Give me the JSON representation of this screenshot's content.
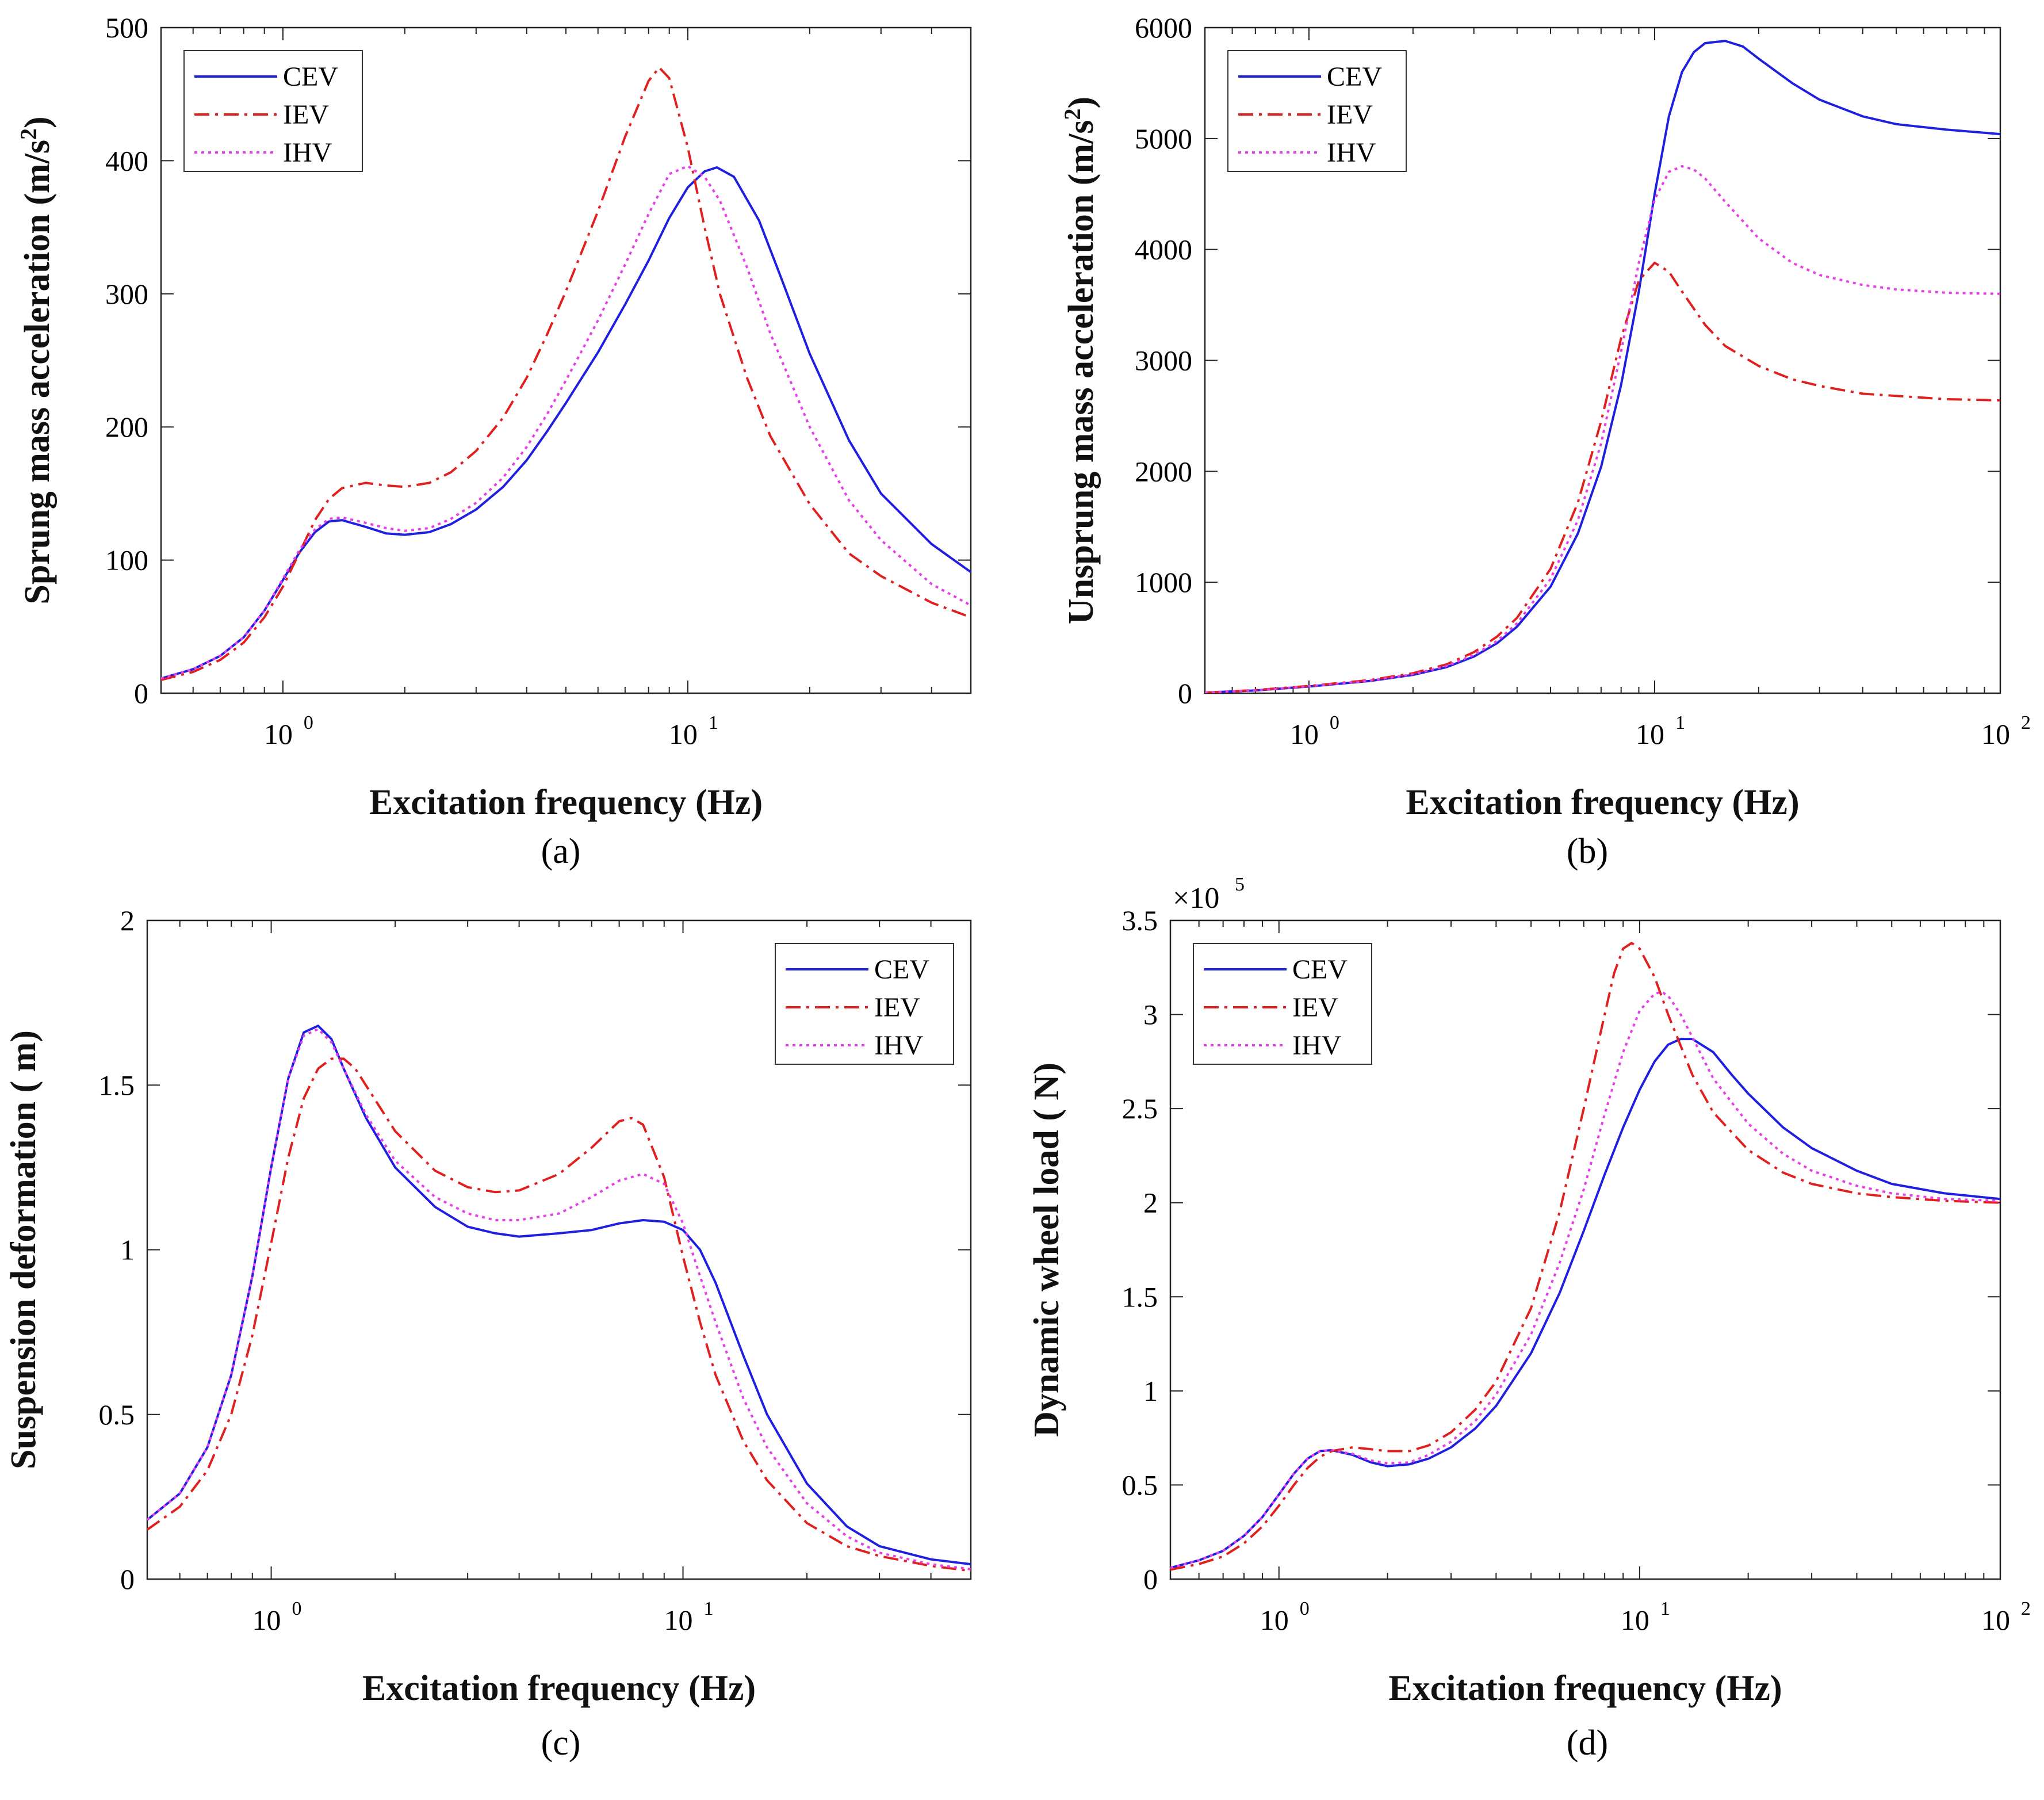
{
  "chart_data": [
    {
      "type": "line",
      "panel": "(a)",
      "caption": "(a)",
      "xscale": "log",
      "xlim": [
        0.5,
        50
      ],
      "ylim": [
        0,
        500
      ],
      "xticks": [
        {
          "base": "10",
          "exp": "0"
        },
        {
          "base": "10",
          "exp": "1"
        }
      ],
      "yticks": [
        "0",
        "100",
        "200",
        "300",
        "400",
        "500"
      ],
      "yticks_values": [
        0,
        100,
        200,
        300,
        400,
        500
      ],
      "xticks_values": [
        1,
        10
      ],
      "xlabel": "Excitation frequency (Hz)",
      "ylabel": "Sprung mass acceleration (m/s",
      "ylabel_sup": "2",
      "ylabel_tail": ")",
      "legend": {
        "position": "top-left",
        "entries": [
          "CEV",
          "IEV",
          "IHV"
        ]
      },
      "series": [
        {
          "name": "CEV",
          "color": "#1f1fe0",
          "style": "solid",
          "x": [
            0.5,
            0.6,
            0.7,
            0.8,
            0.9,
            1.0,
            1.1,
            1.2,
            1.3,
            1.4,
            1.6,
            1.8,
            2.0,
            2.3,
            2.6,
            3.0,
            3.5,
            4.0,
            4.5,
            5.0,
            6.0,
            7.0,
            8.0,
            9.0,
            10.0,
            11.0,
            11.8,
            13.0,
            15.0,
            17.0,
            20.0,
            25.0,
            30.0,
            40.0,
            50.0
          ],
          "y": [
            11,
            18,
            28,
            42,
            62,
            85,
            106,
            121,
            129,
            130,
            125,
            120,
            119,
            121,
            127,
            138,
            155,
            175,
            197,
            218,
            256,
            292,
            325,
            357,
            380,
            392,
            395,
            388,
            355,
            312,
            255,
            190,
            150,
            112,
            91
          ]
        },
        {
          "name": "IEV",
          "color": "#e01f1f",
          "style": "dashdot",
          "x": [
            0.5,
            0.6,
            0.7,
            0.8,
            0.9,
            1.0,
            1.1,
            1.2,
            1.3,
            1.4,
            1.6,
            1.8,
            2.0,
            2.3,
            2.6,
            3.0,
            3.5,
            4.0,
            4.5,
            5.0,
            6.0,
            7.0,
            8.0,
            8.5,
            9.0,
            10.0,
            11.0,
            12.0,
            14.0,
            16.0,
            20.0,
            25.0,
            30.0,
            40.0,
            50.0
          ],
          "y": [
            10,
            16,
            25,
            38,
            57,
            80,
            106,
            130,
            146,
            154,
            158,
            156,
            155,
            158,
            166,
            182,
            207,
            237,
            270,
            302,
            362,
            418,
            460,
            470,
            462,
            410,
            350,
            300,
            237,
            193,
            142,
            105,
            88,
            68,
            57
          ]
        },
        {
          "name": "IHV",
          "color": "#e83ee8",
          "style": "dotted",
          "x": [
            0.5,
            0.6,
            0.7,
            0.8,
            0.9,
            1.0,
            1.1,
            1.2,
            1.3,
            1.4,
            1.6,
            1.8,
            2.0,
            2.3,
            2.6,
            3.0,
            3.5,
            4.0,
            4.5,
            5.0,
            6.0,
            7.0,
            8.0,
            9.0,
            10.0,
            11.0,
            12.0,
            14.0,
            16.0,
            20.0,
            25.0,
            30.0,
            40.0,
            50.0
          ],
          "y": [
            11,
            18,
            28,
            42,
            62,
            86,
            108,
            123,
            131,
            132,
            128,
            124,
            122,
            124,
            131,
            143,
            162,
            185,
            210,
            235,
            280,
            322,
            360,
            390,
            396,
            388,
            370,
            320,
            270,
            200,
            145,
            115,
            82,
            66
          ]
        }
      ]
    },
    {
      "type": "line",
      "panel": "(b)",
      "caption": "(b)",
      "xscale": "log",
      "xlim": [
        0.5,
        100
      ],
      "ylim": [
        0,
        6000
      ],
      "xticks": [
        {
          "base": "10",
          "exp": "0"
        },
        {
          "base": "10",
          "exp": "1"
        },
        {
          "base": "10",
          "exp": "2"
        }
      ],
      "yticks": [
        "0",
        "1000",
        "2000",
        "3000",
        "4000",
        "5000",
        "6000"
      ],
      "yticks_values": [
        0,
        1000,
        2000,
        3000,
        4000,
        5000,
        6000
      ],
      "xticks_values": [
        1,
        10,
        100
      ],
      "xlabel": "Excitation frequency (Hz)",
      "ylabel": "Unsprung mass acceleration (m/s",
      "ylabel_sup": "2",
      "ylabel_tail": ")",
      "legend": {
        "position": "top-left",
        "entries": [
          "CEV",
          "IEV",
          "IHV"
        ]
      },
      "series": [
        {
          "name": "CEV",
          "color": "#1f1fe0",
          "style": "solid",
          "x": [
            0.5,
            0.7,
            1.0,
            1.5,
            2.0,
            2.5,
            3.0,
            3.5,
            4.0,
            5.0,
            6.0,
            7.0,
            8.0,
            9.0,
            10.0,
            11.0,
            12.0,
            13.0,
            14.0,
            16.0,
            18.0,
            20.0,
            25.0,
            30.0,
            40.0,
            50.0,
            70.0,
            100.0
          ],
          "y": [
            5,
            25,
            60,
            110,
            165,
            235,
            330,
            450,
            600,
            960,
            1440,
            2040,
            2780,
            3620,
            4500,
            5200,
            5600,
            5780,
            5860,
            5880,
            5830,
            5720,
            5500,
            5350,
            5200,
            5130,
            5080,
            5040
          ]
        },
        {
          "name": "IEV",
          "color": "#e01f1f",
          "style": "dashdot",
          "x": [
            0.5,
            0.7,
            1.0,
            1.5,
            2.0,
            2.5,
            3.0,
            3.5,
            4.0,
            5.0,
            6.0,
            7.0,
            8.0,
            9.0,
            10.0,
            11.0,
            12.0,
            14.0,
            16.0,
            20.0,
            25.0,
            30.0,
            40.0,
            50.0,
            70.0,
            100.0
          ],
          "y": [
            5,
            28,
            65,
            118,
            180,
            260,
            370,
            510,
            680,
            1120,
            1720,
            2450,
            3200,
            3720,
            3880,
            3800,
            3620,
            3320,
            3130,
            2950,
            2830,
            2770,
            2700,
            2680,
            2650,
            2640
          ]
        },
        {
          "name": "IHV",
          "color": "#e83ee8",
          "style": "dotted",
          "x": [
            0.5,
            0.7,
            1.0,
            1.5,
            2.0,
            2.5,
            3.0,
            3.5,
            4.0,
            5.0,
            6.0,
            7.0,
            8.0,
            9.0,
            10.0,
            11.0,
            12.0,
            13.0,
            14.0,
            16.0,
            20.0,
            25.0,
            30.0,
            40.0,
            50.0,
            70.0,
            100.0
          ],
          "y": [
            5,
            26,
            62,
            113,
            170,
            245,
            345,
            470,
            630,
            1030,
            1560,
            2250,
            3080,
            3880,
            4450,
            4700,
            4750,
            4720,
            4640,
            4430,
            4100,
            3880,
            3770,
            3680,
            3640,
            3610,
            3600
          ]
        }
      ]
    },
    {
      "type": "line",
      "panel": "(c)",
      "caption": "(c)",
      "xscale": "log",
      "xlim": [
        0.5,
        50
      ],
      "ylim": [
        0,
        2
      ],
      "xticks": [
        {
          "base": "10",
          "exp": "0"
        },
        {
          "base": "10",
          "exp": "1"
        }
      ],
      "yticks": [
        "0",
        "0.5",
        "1",
        "1.5",
        "2"
      ],
      "yticks_values": [
        0,
        0.5,
        1,
        1.5,
        2
      ],
      "xticks_values": [
        1,
        10
      ],
      "xlabel": "Excitation frequency (Hz)",
      "ylabel": "Suspension deformation ( m)",
      "ylabel_sup": "",
      "ylabel_tail": "",
      "legend": {
        "position": "top-right",
        "entries": [
          "CEV",
          "IEV",
          "IHV"
        ]
      },
      "series": [
        {
          "name": "CEV",
          "color": "#1f1fe0",
          "style": "solid",
          "x": [
            0.5,
            0.6,
            0.7,
            0.8,
            0.9,
            1.0,
            1.1,
            1.2,
            1.3,
            1.4,
            1.5,
            1.7,
            2.0,
            2.5,
            3.0,
            3.5,
            4.0,
            5.0,
            6.0,
            7.0,
            8.0,
            9.0,
            10.0,
            11.0,
            12.0,
            14.0,
            16.0,
            20.0,
            25.0,
            30.0,
            40.0,
            50.0
          ],
          "y": [
            0.18,
            0.26,
            0.4,
            0.62,
            0.92,
            1.25,
            1.52,
            1.66,
            1.68,
            1.64,
            1.55,
            1.4,
            1.25,
            1.13,
            1.07,
            1.05,
            1.04,
            1.05,
            1.06,
            1.08,
            1.09,
            1.085,
            1.06,
            1.0,
            0.9,
            0.68,
            0.5,
            0.29,
            0.16,
            0.1,
            0.06,
            0.045
          ]
        },
        {
          "name": "IEV",
          "color": "#e01f1f",
          "style": "dashdot",
          "x": [
            0.5,
            0.6,
            0.7,
            0.8,
            0.9,
            1.0,
            1.1,
            1.2,
            1.3,
            1.4,
            1.5,
            1.6,
            1.8,
            2.0,
            2.5,
            3.0,
            3.5,
            4.0,
            5.0,
            6.0,
            7.0,
            7.5,
            8.0,
            9.0,
            10.0,
            11.0,
            12.0,
            14.0,
            16.0,
            20.0,
            25.0,
            30.0,
            40.0,
            50.0
          ],
          "y": [
            0.15,
            0.22,
            0.33,
            0.5,
            0.74,
            1.02,
            1.28,
            1.46,
            1.55,
            1.58,
            1.58,
            1.55,
            1.45,
            1.36,
            1.24,
            1.19,
            1.175,
            1.18,
            1.23,
            1.31,
            1.39,
            1.4,
            1.38,
            1.22,
            0.98,
            0.78,
            0.62,
            0.42,
            0.3,
            0.17,
            0.1,
            0.07,
            0.04,
            0.025
          ]
        },
        {
          "name": "IHV",
          "color": "#e83ee8",
          "style": "dotted",
          "x": [
            0.5,
            0.6,
            0.7,
            0.8,
            0.9,
            1.0,
            1.1,
            1.2,
            1.3,
            1.4,
            1.5,
            1.7,
            2.0,
            2.5,
            3.0,
            3.5,
            4.0,
            5.0,
            6.0,
            7.0,
            8.0,
            9.0,
            10.0,
            11.0,
            12.0,
            14.0,
            16.0,
            20.0,
            25.0,
            30.0,
            40.0,
            50.0
          ],
          "y": [
            0.18,
            0.26,
            0.4,
            0.62,
            0.92,
            1.25,
            1.52,
            1.65,
            1.67,
            1.63,
            1.55,
            1.41,
            1.27,
            1.16,
            1.11,
            1.09,
            1.09,
            1.11,
            1.16,
            1.21,
            1.23,
            1.2,
            1.08,
            0.92,
            0.78,
            0.55,
            0.4,
            0.23,
            0.13,
            0.08,
            0.045,
            0.03
          ]
        }
      ]
    },
    {
      "type": "line",
      "panel": "(d)",
      "caption": "(d)",
      "xscale": "log",
      "xlim": [
        0.5,
        100
      ],
      "ylim": [
        0,
        3.5
      ],
      "y_multiplier": {
        "base": "×10",
        "exp": "5"
      },
      "xticks": [
        {
          "base": "10",
          "exp": "0"
        },
        {
          "base": "10",
          "exp": "1"
        },
        {
          "base": "10",
          "exp": "2"
        }
      ],
      "yticks": [
        "0",
        "0.5",
        "1",
        "1.5",
        "2",
        "2.5",
        "3",
        "3.5"
      ],
      "yticks_values": [
        0,
        0.5,
        1,
        1.5,
        2,
        2.5,
        3,
        3.5
      ],
      "xticks_values": [
        1,
        10,
        100
      ],
      "xlabel": "Excitation frequency (Hz)",
      "ylabel": "Dynamic wheel load ( N)",
      "ylabel_sup": "",
      "ylabel_tail": "",
      "legend": {
        "position": "top-left",
        "entries": [
          "CEV",
          "IEV",
          "IHV"
        ]
      },
      "series": [
        {
          "name": "CEV",
          "color": "#1f1fe0",
          "style": "solid",
          "x": [
            0.5,
            0.6,
            0.7,
            0.8,
            0.9,
            1.0,
            1.1,
            1.2,
            1.3,
            1.4,
            1.6,
            1.8,
            2.0,
            2.3,
            2.6,
            3.0,
            3.5,
            4.0,
            5.0,
            6.0,
            7.0,
            8.0,
            9.0,
            10.0,
            11.0,
            12.0,
            13.0,
            14.0,
            16.0,
            18.0,
            20.0,
            25.0,
            30.0,
            40.0,
            50.0,
            70.0,
            100.0
          ],
          "y": [
            0.06,
            0.1,
            0.15,
            0.23,
            0.33,
            0.45,
            0.56,
            0.64,
            0.68,
            0.685,
            0.66,
            0.62,
            0.6,
            0.61,
            0.64,
            0.7,
            0.8,
            0.92,
            1.2,
            1.52,
            1.85,
            2.15,
            2.4,
            2.6,
            2.75,
            2.84,
            2.87,
            2.87,
            2.8,
            2.68,
            2.58,
            2.4,
            2.29,
            2.17,
            2.1,
            2.05,
            2.02
          ]
        },
        {
          "name": "IEV",
          "color": "#e01f1f",
          "style": "dashdot",
          "x": [
            0.5,
            0.6,
            0.7,
            0.8,
            0.9,
            1.0,
            1.1,
            1.2,
            1.3,
            1.4,
            1.6,
            1.8,
            2.0,
            2.3,
            2.6,
            3.0,
            3.5,
            4.0,
            5.0,
            6.0,
            7.0,
            8.0,
            8.5,
            9.0,
            9.5,
            10.0,
            11.0,
            12.0,
            14.0,
            16.0,
            20.0,
            25.0,
            30.0,
            40.0,
            50.0,
            70.0,
            100.0
          ],
          "y": [
            0.05,
            0.08,
            0.12,
            0.19,
            0.28,
            0.39,
            0.5,
            0.59,
            0.65,
            0.68,
            0.7,
            0.69,
            0.68,
            0.68,
            0.71,
            0.78,
            0.9,
            1.05,
            1.44,
            1.95,
            2.5,
            3.0,
            3.22,
            3.35,
            3.38,
            3.35,
            3.2,
            3.0,
            2.68,
            2.48,
            2.28,
            2.16,
            2.1,
            2.05,
            2.03,
            2.01,
            2.0
          ]
        },
        {
          "name": "IHV",
          "color": "#e83ee8",
          "style": "dotted",
          "x": [
            0.5,
            0.6,
            0.7,
            0.8,
            0.9,
            1.0,
            1.1,
            1.2,
            1.3,
            1.4,
            1.6,
            1.8,
            2.0,
            2.3,
            2.6,
            3.0,
            3.5,
            4.0,
            5.0,
            6.0,
            7.0,
            8.0,
            9.0,
            10.0,
            11.0,
            11.5,
            12.0,
            13.0,
            14.0,
            16.0,
            20.0,
            25.0,
            30.0,
            40.0,
            50.0,
            70.0,
            100.0
          ],
          "y": [
            0.06,
            0.1,
            0.15,
            0.23,
            0.33,
            0.45,
            0.56,
            0.64,
            0.68,
            0.685,
            0.665,
            0.63,
            0.615,
            0.62,
            0.66,
            0.73,
            0.84,
            0.98,
            1.3,
            1.68,
            2.07,
            2.47,
            2.8,
            3.02,
            3.11,
            3.12,
            3.1,
            3.0,
            2.88,
            2.66,
            2.42,
            2.26,
            2.17,
            2.09,
            2.05,
            2.02,
            2.01
          ]
        }
      ]
    }
  ]
}
